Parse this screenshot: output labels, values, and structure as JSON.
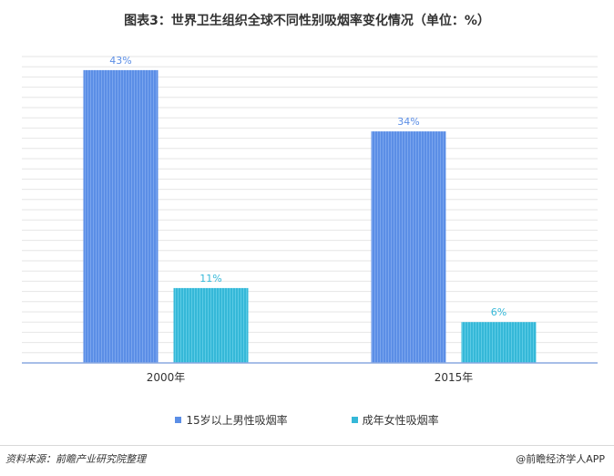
{
  "chart_data": {
    "type": "bar",
    "title": "图表3：世界卫生组织全球不同性别吸烟率变化情况（单位：%）",
    "categories": [
      "2000年",
      "2015年"
    ],
    "series": [
      {
        "name": "15岁以上男性吸烟率",
        "values": [
          43,
          34
        ],
        "labels": [
          "43%",
          "34%"
        ],
        "color": "#5b8ee6"
      },
      {
        "name": "成年女性吸烟率",
        "values": [
          11,
          6
        ],
        "labels": [
          "11%",
          "6%"
        ],
        "color": "#35b8d8"
      }
    ],
    "ylim": [
      0,
      45
    ],
    "grid": true,
    "legend_position": "bottom"
  },
  "footer": {
    "source": "资料来源：前瞻产业研究院整理",
    "brand": "@前瞻经济学人APP"
  }
}
